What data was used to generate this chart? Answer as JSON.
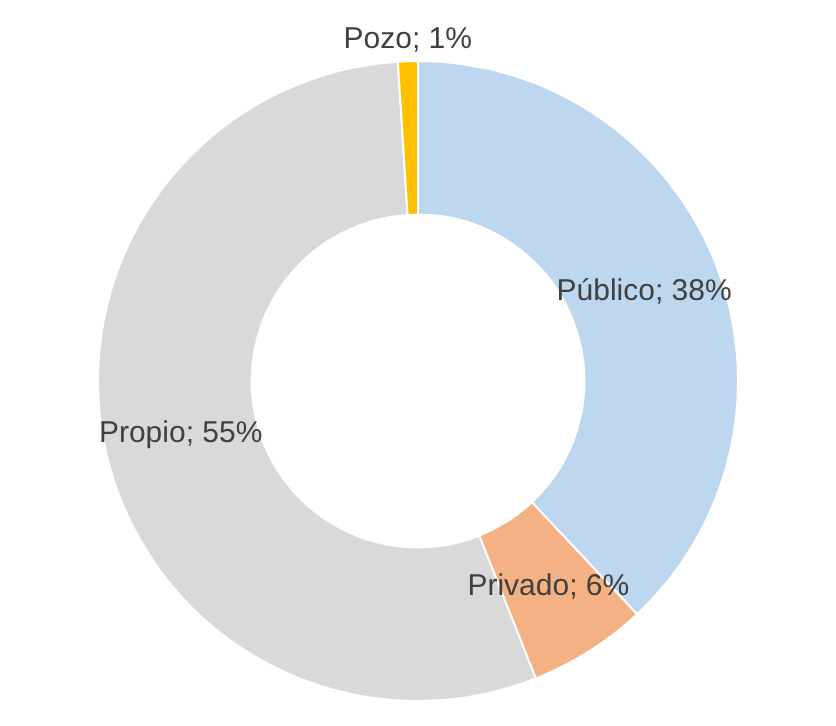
{
  "chart_data": {
    "type": "donut",
    "categories": [
      "Público",
      "Privado",
      "Propio",
      "Pozo"
    ],
    "values": [
      38,
      6,
      55,
      1
    ],
    "colors": [
      "#bdd7ee",
      "#f4b183",
      "#d9d9d9",
      "#ffc000"
    ],
    "value_labels": [
      "38%",
      "6%",
      "55%",
      "1%"
    ],
    "legend": false
  }
}
